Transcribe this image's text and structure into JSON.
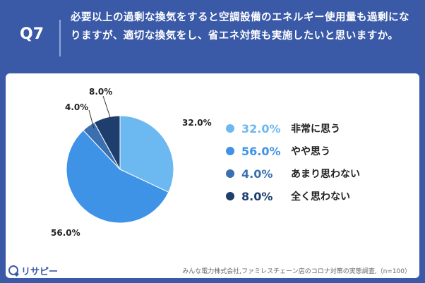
{
  "header": {
    "qnum": "Q7",
    "question": "必要以上の過剰な換気をすると空調設備のエネルギー使用量も過剰になりますが、適切な換気をし、省エネ対策も実施したいと思いますか。"
  },
  "chart_data": {
    "type": "pie",
    "categories": [
      "非常に思う",
      "やや思う",
      "あまり思わない",
      "全く思わない"
    ],
    "values": [
      32.0,
      56.0,
      4.0,
      8.0
    ],
    "value_labels": [
      "32.0%",
      "56.0%",
      "4.0%",
      "8.0%"
    ],
    "colors": [
      "#6cb8f0",
      "#3f93e6",
      "#3a6fb0",
      "#1e3f6e"
    ],
    "start": "12 o'clock",
    "direction": "clockwise",
    "legend_position": "right"
  },
  "footer": {
    "source": "みんな電力株式会社,ファミレスチェーン店のコロナ対策の実態調査,（n=100）",
    "logo": "リサピー"
  }
}
